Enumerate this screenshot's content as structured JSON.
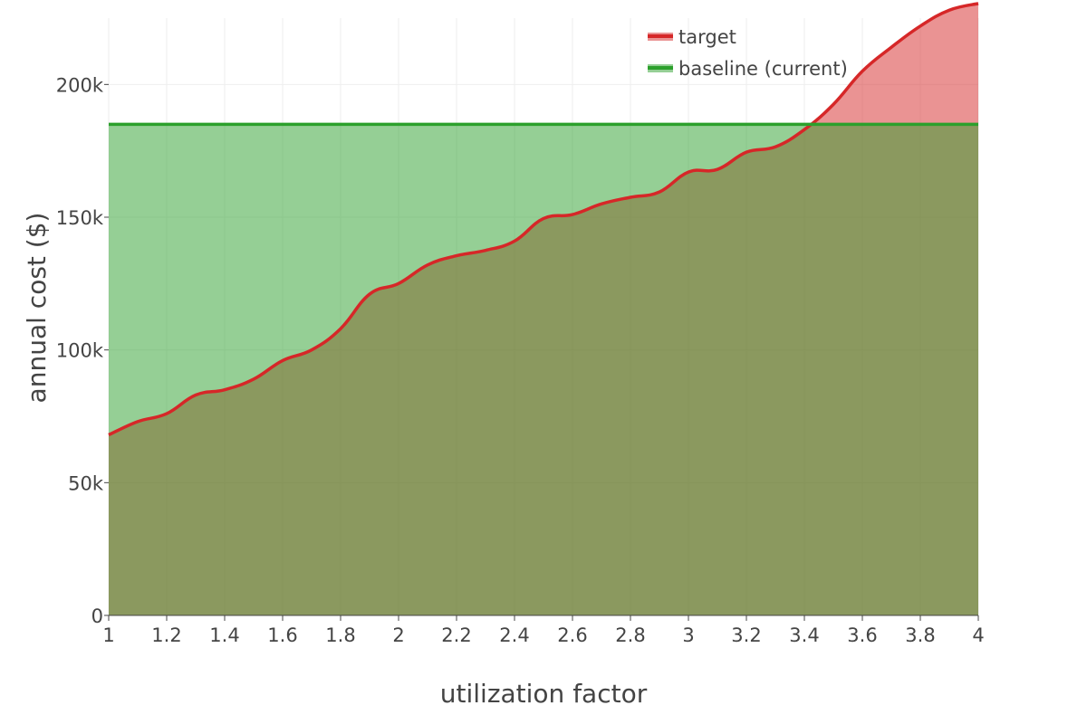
{
  "chart_data": {
    "type": "area",
    "title": "",
    "xlabel": "utilization factor",
    "ylabel": "annual cost ($)",
    "xlim": [
      1,
      4
    ],
    "ylim": [
      0,
      225000
    ],
    "x_ticks": [
      1,
      1.2,
      1.4,
      1.6,
      1.8,
      2,
      2.2,
      2.4,
      2.6,
      2.8,
      3,
      3.2,
      3.4,
      3.6,
      3.8,
      4
    ],
    "x_tick_labels": [
      "1",
      "1.2",
      "1.4",
      "1.6",
      "1.8",
      "2",
      "2.2",
      "2.4",
      "2.6",
      "2.8",
      "3",
      "3.2",
      "3.4",
      "3.6",
      "3.8",
      "4"
    ],
    "y_ticks": [
      0,
      50000,
      100000,
      150000,
      200000
    ],
    "y_tick_labels": [
      "0",
      "50k",
      "100k",
      "150k",
      "200k"
    ],
    "grid": true,
    "legend_position": "top-right",
    "x": [
      1.0,
      1.1,
      1.2,
      1.3,
      1.4,
      1.5,
      1.6,
      1.7,
      1.8,
      1.9,
      2.0,
      2.1,
      2.2,
      2.3,
      2.4,
      2.5,
      2.6,
      2.7,
      2.8,
      2.9,
      3.0,
      3.1,
      3.2,
      3.3,
      3.4,
      3.5,
      3.6,
      3.7,
      3.8,
      3.9,
      4.0
    ],
    "series": [
      {
        "name": "target",
        "color": "#d62728",
        "fill_color": "rgba(214, 39, 40, 0.5)",
        "values": [
          68000,
          73000,
          76000,
          83000,
          85000,
          89000,
          96000,
          100000,
          108000,
          121000,
          125000,
          132000,
          135500,
          137500,
          141000,
          149500,
          151000,
          155000,
          157500,
          159500,
          167000,
          168000,
          174500,
          176500,
          183000,
          192500,
          205000,
          214000,
          222000,
          228000,
          230500
        ]
      },
      {
        "name": "baseline (current)",
        "color": "#2ca02c",
        "fill_color": "rgba(44, 160, 44, 0.5)",
        "values": [
          185000,
          185000,
          185000,
          185000,
          185000,
          185000,
          185000,
          185000,
          185000,
          185000,
          185000,
          185000,
          185000,
          185000,
          185000,
          185000,
          185000,
          185000,
          185000,
          185000,
          185000,
          185000,
          185000,
          185000,
          185000,
          185000,
          185000,
          185000,
          185000,
          185000,
          185000
        ]
      }
    ]
  }
}
